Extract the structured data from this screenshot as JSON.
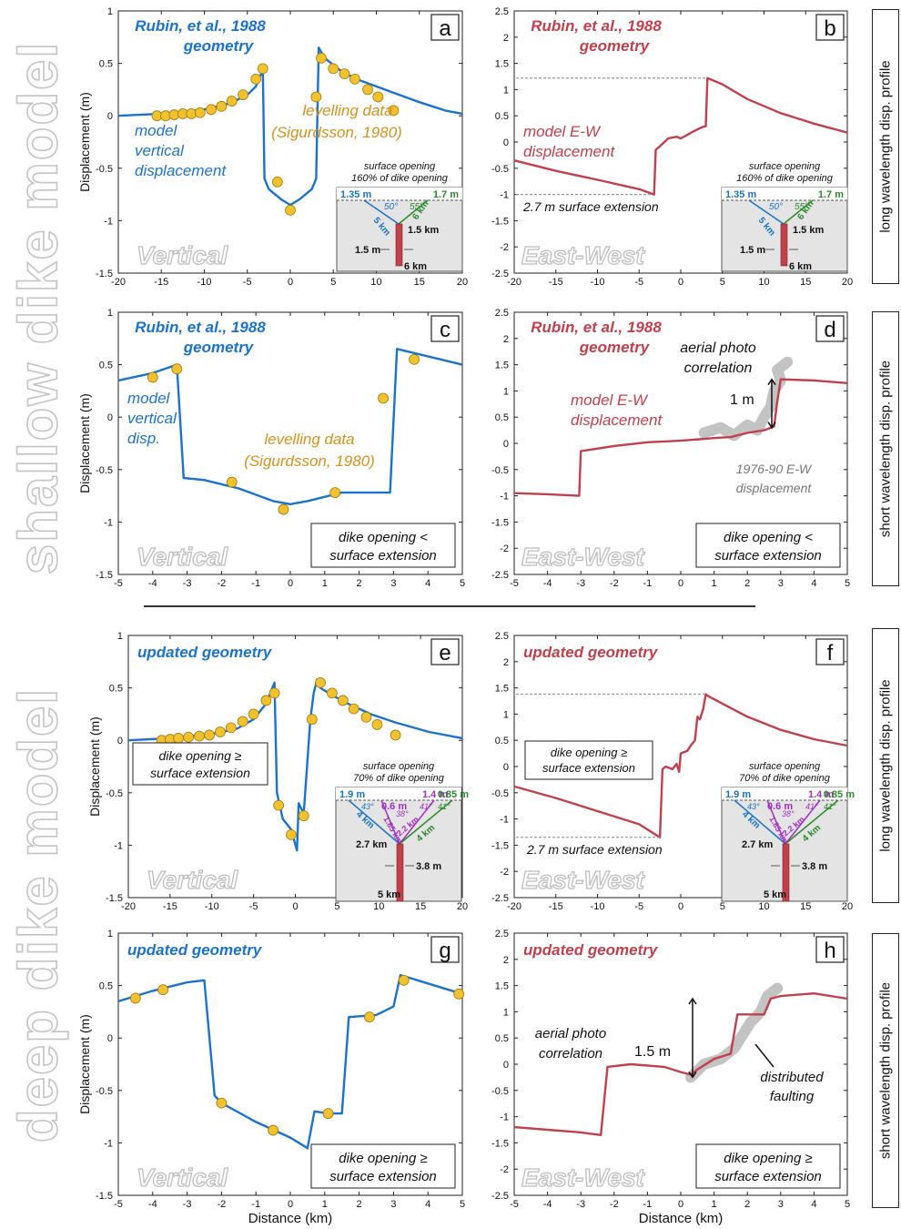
{
  "side_labels": {
    "top": "shallow dike model",
    "bottom": "deep dike model"
  },
  "row_labels": [
    "long wavelength disp. profile",
    "short wavelength disp. profile",
    "long wavelength disp. profile",
    "short wavelength disp. profile"
  ],
  "colors": {
    "vertical": "#1a73c8",
    "ew": "#c0404c",
    "levelling": "#f2c12e",
    "aerial": "#b8b8b8",
    "green": "#2a8a2a",
    "purple": "#a030c0",
    "dike": "#c0404c"
  },
  "chart_data": [
    {
      "id": "a",
      "type": "line",
      "title": "Rubin, et al., 1988 geometry",
      "ylabel": "Displacement (m)",
      "xlabel": "",
      "xlim": [
        -20,
        20
      ],
      "ylim": [
        -1.5,
        1
      ],
      "xticks": [
        "-20",
        "-15",
        "-10",
        "-5",
        "0",
        "5",
        "10",
        "15",
        "20"
      ],
      "yticks": [
        "-1.5",
        "-1",
        "-0.5",
        "0",
        "0.5",
        "1"
      ],
      "series": [
        {
          "name": "model vertical displacement",
          "color": "#1a73c8",
          "x": [
            -20,
            -15,
            -10,
            -7,
            -5,
            -4,
            -3.2,
            -3,
            -2.5,
            -1,
            0,
            1,
            2.5,
            3,
            3.3,
            4,
            6,
            8,
            10,
            12,
            15,
            18,
            20
          ],
          "y": [
            0,
            0.02,
            0.06,
            0.12,
            0.2,
            0.28,
            0.44,
            -0.6,
            -0.7,
            -0.8,
            -0.85,
            -0.8,
            -0.7,
            -0.6,
            0.65,
            0.55,
            0.42,
            0.34,
            0.28,
            0.22,
            0.13,
            0.05,
            0.02
          ]
        }
      ],
      "points": {
        "name": "levelling data (Sigurdsson, 1980)",
        "x": [
          -15.5,
          -14.5,
          -13.5,
          -12.5,
          -11.5,
          -10.5,
          -9.2,
          -8,
          -6.8,
          -5.5,
          -4,
          -3.2,
          -1.5,
          0,
          3,
          3.6,
          5,
          6.3,
          7.5,
          9,
          10.2,
          12
        ],
        "y": [
          0,
          0,
          0.01,
          0.02,
          0.02,
          0.03,
          0.06,
          0.09,
          0.14,
          0.2,
          0.35,
          0.45,
          -0.63,
          -0.9,
          0.18,
          0.55,
          0.45,
          0.4,
          0.35,
          0.25,
          0.18,
          0.05
        ]
      },
      "annotations": [
        "model vertical displacement",
        "levelling data (Sigurdsson, 1980)",
        "Vertical"
      ],
      "label_box": "a",
      "inset": {
        "caption": "surface opening 160% of dike opening",
        "left_fault": "1.35 m",
        "right_fault": "1.7 m",
        "left_angle": "50°",
        "right_angle": "55°",
        "left_len": "5 km",
        "right_len": "6 km",
        "top_depth": "1.5 km",
        "opening": "1.5 m",
        "bottom_depth": "6 km"
      }
    },
    {
      "id": "b",
      "type": "line",
      "title": "Rubin, et al., 1988 geometry",
      "ylabel": "",
      "xlabel": "",
      "xlim": [
        -20,
        20
      ],
      "ylim": [
        -2.5,
        2.5
      ],
      "xticks": [
        "-20",
        "-15",
        "-10",
        "-5",
        "0",
        "5",
        "10",
        "15",
        "20"
      ],
      "yticks": [
        "-2.5",
        "-2",
        "-1.5",
        "-1",
        "-0.5",
        "0",
        "0.5",
        "1",
        "1.5",
        "2",
        "2.5"
      ],
      "series": [
        {
          "name": "model E-W displacement",
          "color": "#c0404c",
          "x": [
            -20,
            -15,
            -10,
            -5,
            -3.2,
            -3,
            -2.5,
            -1.5,
            -0.5,
            0,
            0.6,
            1.5,
            2.5,
            3,
            3.2,
            5,
            8,
            12,
            16,
            20
          ],
          "y": [
            -0.35,
            -0.55,
            -0.72,
            -0.9,
            -1,
            -0.15,
            -0.08,
            0.07,
            0.1,
            0.07,
            0.12,
            0.2,
            0.28,
            0.3,
            1.22,
            1.1,
            0.82,
            0.55,
            0.35,
            0.18
          ]
        }
      ],
      "annotations": [
        "model E-W displacement",
        "2.7 m surface extension",
        "East-West"
      ],
      "label_box": "b",
      "inset": {
        "caption": "surface opening 160% of dike opening",
        "left_fault": "1.35 m",
        "right_fault": "1.7 m",
        "left_angle": "50°",
        "right_angle": "55°",
        "left_len": "5 km",
        "right_len": "6 km",
        "top_depth": "1.5 km",
        "opening": "1.5 m",
        "bottom_depth": "6 km"
      }
    },
    {
      "id": "c",
      "type": "line",
      "title": "Rubin, et al., 1988 geometry",
      "ylabel": "Displacement (m)",
      "xlabel": "",
      "xlim": [
        -5,
        5
      ],
      "ylim": [
        -1.5,
        1
      ],
      "xticks": [
        "-5",
        "-4",
        "-3",
        "-2",
        "-1",
        "0",
        "1",
        "2",
        "3",
        "4",
        "5"
      ],
      "yticks": [
        "-1.5",
        "-1",
        "-0.5",
        "0",
        "0.5",
        "1"
      ],
      "series": [
        {
          "name": "model vertical disp.",
          "color": "#1a73c8",
          "x": [
            -5,
            -4,
            -3.3,
            -3.1,
            -2.5,
            -1.5,
            -0.5,
            0,
            0.5,
            1.5,
            2.5,
            2.9,
            3.1,
            4,
            5
          ],
          "y": [
            0.35,
            0.42,
            0.5,
            -0.58,
            -0.6,
            -0.68,
            -0.8,
            -0.83,
            -0.8,
            -0.72,
            -0.72,
            -0.72,
            0.65,
            0.58,
            0.5
          ]
        }
      ],
      "points": {
        "name": "levelling data (Sigurdsson, 1980)",
        "x": [
          -4,
          -3.3,
          -1.7,
          -0.2,
          1.3,
          2.7,
          3.6
        ],
        "y": [
          0.38,
          0.46,
          -0.62,
          -0.88,
          -0.72,
          0.18,
          0.55
        ]
      },
      "annotations": [
        "model vertical disp.",
        "levelling data (Sigurdsson, 1980)",
        "Vertical",
        "dike opening < surface extension"
      ],
      "label_box": "c"
    },
    {
      "id": "d",
      "type": "line",
      "title": "Rubin, et al., 1988 geometry",
      "ylabel": "",
      "xlabel": "",
      "xlim": [
        -5,
        5
      ],
      "ylim": [
        -2.5,
        2.5
      ],
      "xticks": [
        "-5",
        "-4",
        "-3",
        "-2",
        "-1",
        "0",
        "1",
        "2",
        "3",
        "4",
        "5"
      ],
      "yticks": [
        "-2.5",
        "-2",
        "-1.5",
        "-1",
        "-0.5",
        "0",
        "0.5",
        "1",
        "1.5",
        "2",
        "2.5"
      ],
      "series": [
        {
          "name": "model E-W displacement",
          "color": "#c0404c",
          "x": [
            -5,
            -4,
            -3.05,
            -3,
            -2,
            -1,
            0,
            1,
            1.5,
            2,
            2.5,
            2.8,
            2.9,
            3,
            4,
            5
          ],
          "y": [
            -0.95,
            -0.97,
            -1,
            -0.15,
            -0.05,
            0.02,
            0.05,
            0.1,
            0.12,
            0.2,
            0.25,
            0.32,
            0.8,
            1.22,
            1.2,
            1.15
          ]
        },
        {
          "name": "1976-90 E-W displacement",
          "color": "#b8b8b8",
          "x": [
            0.7,
            1.2,
            1.6,
            2,
            2.3,
            2.5,
            2.7,
            2.8,
            3,
            2.9,
            3.2
          ],
          "y": [
            0.2,
            0.3,
            0.15,
            0.35,
            0.25,
            0.5,
            0.7,
            1.0,
            1.2,
            1.4,
            1.55
          ]
        }
      ],
      "annotations": [
        "aerial photo correlation",
        "1 m",
        "model E-W displacement",
        "1976-90 E-W displacement",
        "East-West",
        "dike opening < surface extension"
      ],
      "label_box": "d"
    },
    {
      "id": "e",
      "type": "line",
      "title": "updated geometry",
      "ylabel": "Displacement (m)",
      "xlabel": "",
      "xlim": [
        -20,
        20
      ],
      "ylim": [
        -1.5,
        1
      ],
      "xticks": [
        "-20",
        "-15",
        "-10",
        "-5",
        "0",
        "5",
        "10",
        "15",
        "20"
      ],
      "yticks": [
        "-1.5",
        "-1",
        "-0.5",
        "0",
        "0.5",
        "1"
      ],
      "series": [
        {
          "name": "model vertical displacement",
          "color": "#1a73c8",
          "x": [
            -20,
            -15,
            -10,
            -7,
            -5,
            -3.5,
            -2.5,
            -2.2,
            -1.5,
            -0.5,
            0.2,
            0.4,
            1,
            1.8,
            2.2,
            2.6,
            3,
            4,
            6,
            9,
            12,
            16,
            20
          ],
          "y": [
            0,
            0.02,
            0.06,
            0.11,
            0.2,
            0.35,
            0.55,
            -0.5,
            -0.75,
            -0.85,
            -1.05,
            -0.6,
            -0.7,
            0.2,
            0.45,
            0.58,
            0.5,
            0.45,
            0.36,
            0.25,
            0.17,
            0.08,
            0.02
          ]
        }
      ],
      "points": {
        "name": "levelling data",
        "x": [
          -16,
          -15,
          -14,
          -12.8,
          -11.5,
          -10.3,
          -9,
          -7.7,
          -6.3,
          -5,
          -3.5,
          -2.5,
          -2,
          -0.5,
          1,
          2,
          3,
          4.4,
          5.7,
          7,
          8.5,
          9.8,
          12
        ],
        "y": [
          0,
          0.01,
          0.02,
          0.03,
          0.04,
          0.05,
          0.08,
          0.12,
          0.18,
          0.25,
          0.38,
          0.45,
          -0.62,
          -0.9,
          -0.72,
          0.2,
          0.55,
          0.45,
          0.38,
          0.3,
          0.22,
          0.15,
          0.05
        ]
      },
      "annotations": [
        "dike opening ≥ surface extension",
        "Vertical"
      ],
      "label_box": "e",
      "inset": {
        "caption": "surface opening 70% of dike opening",
        "left_fault": "1.9 m",
        "mid_left": "0.6 m",
        "mid_right": "1.4 m",
        "right_fault": "0.85 m",
        "angle_1": "43°",
        "angle_2": "38°",
        "angle_3": "41°",
        "angle_4": "41°",
        "left_len": "4 km",
        "mid_len_1": "1.85 km",
        "mid_len_2": "2.2 km",
        "right_len": "4 km",
        "top_depth": "2.7 km",
        "opening": "3.8 m",
        "bottom_depth": "5 km"
      }
    },
    {
      "id": "f",
      "type": "line",
      "title": "updated geometry",
      "ylabel": "",
      "xlabel": "",
      "xlim": [
        -20,
        20
      ],
      "ylim": [
        -2.5,
        2.5
      ],
      "xticks": [
        "-20",
        "-15",
        "-10",
        "-5",
        "0",
        "5",
        "10",
        "15",
        "20"
      ],
      "yticks": [
        "-2.5",
        "-2",
        "-1.5",
        "-1",
        "-0.5",
        "0",
        "0.5",
        "1",
        "1.5",
        "2",
        "2.5"
      ],
      "series": [
        {
          "name": "model E-W displacement",
          "color": "#c0404c",
          "x": [
            -20,
            -15,
            -10,
            -5,
            -2.5,
            -2.2,
            -1.8,
            -1,
            -0.5,
            -0.2,
            0,
            0.8,
            1.2,
            1.7,
            2,
            2.3,
            2.7,
            3,
            3.2,
            5,
            8,
            12,
            16,
            20
          ],
          "y": [
            -0.38,
            -0.6,
            -0.85,
            -1.1,
            -1.35,
            -0.05,
            0,
            -0.05,
            0.05,
            -0.1,
            0.25,
            0.3,
            0.4,
            0.5,
            0.95,
            0.9,
            1.1,
            1.38,
            1.35,
            1.2,
            0.95,
            0.7,
            0.52,
            0.4
          ]
        }
      ],
      "annotations": [
        "dike opening ≥ surface extension",
        "2.7 m surface extension",
        "East-West"
      ],
      "label_box": "f",
      "inset": {
        "caption": "surface opening 70% of dike opening",
        "left_fault": "1.9 m",
        "mid_left": "0.6 m",
        "mid_right": "1.4 m",
        "right_fault": "0.85 m",
        "angle_1": "43°",
        "angle_2": "38°",
        "angle_3": "41°",
        "angle_4": "41°",
        "left_len": "4 km",
        "mid_len_1": "1.85 km",
        "mid_len_2": "2.2 km",
        "right_len": "4 km",
        "top_depth": "2.7 km",
        "opening": "3.8 m",
        "bottom_depth": "5 km"
      }
    },
    {
      "id": "g",
      "type": "line",
      "title": "updated geometry",
      "ylabel": "Displacement (m)",
      "xlabel": "Distance (km)",
      "xlim": [
        -5,
        5
      ],
      "ylim": [
        -1.5,
        1
      ],
      "xticks": [
        "-5",
        "-4",
        "-3",
        "-2",
        "-1",
        "0",
        "1",
        "2",
        "3",
        "4",
        "5"
      ],
      "yticks": [
        "-1.5",
        "-1",
        "-0.5",
        "0",
        "0.5",
        "1"
      ],
      "series": [
        {
          "name": "model vertical displacement",
          "color": "#1a73c8",
          "x": [
            -5,
            -4,
            -3,
            -2.5,
            -2.2,
            -2,
            -1,
            0,
            0.5,
            0.7,
            1.1,
            1.5,
            1.7,
            2.5,
            3,
            3.2,
            4,
            5
          ],
          "y": [
            0.35,
            0.45,
            0.53,
            0.55,
            -0.55,
            -0.62,
            -0.8,
            -0.95,
            -1.05,
            -0.7,
            -0.72,
            -0.72,
            0.2,
            0.22,
            0.3,
            0.6,
            0.52,
            0.42
          ]
        }
      ],
      "points": {
        "name": "levelling data",
        "x": [
          -4.5,
          -3.7,
          -2,
          -0.5,
          1.1,
          2.3,
          3.3,
          4.9
        ],
        "y": [
          0.38,
          0.46,
          -0.62,
          -0.88,
          -0.72,
          0.2,
          0.55,
          0.42
        ]
      },
      "annotations": [
        "Vertical",
        "dike opening ≥ surface extension"
      ],
      "label_box": "g"
    },
    {
      "id": "h",
      "type": "line",
      "title": "updated geometry",
      "ylabel": "",
      "xlabel": "Distance (km)",
      "xlim": [
        -5,
        5
      ],
      "ylim": [
        -2.5,
        2.5
      ],
      "xticks": [
        "-5",
        "-4",
        "-3",
        "-2",
        "-1",
        "0",
        "1",
        "2",
        "3",
        "4",
        "5"
      ],
      "yticks": [
        "-2.5",
        "-2",
        "-1.5",
        "-1",
        "-0.5",
        "0",
        "0.5",
        "1",
        "1.5",
        "2",
        "2.5"
      ],
      "series": [
        {
          "name": "model E-W displacement",
          "color": "#c0404c",
          "x": [
            -5,
            -4,
            -3,
            -2.4,
            -2.2,
            -1.5,
            -0.5,
            0,
            0.3,
            0.5,
            1,
            1.5,
            1.7,
            2.5,
            2.7,
            3,
            4,
            5
          ],
          "y": [
            -1.2,
            -1.25,
            -1.3,
            -1.35,
            -0.05,
            0,
            -0.05,
            -0.15,
            -0.2,
            -0.1,
            0.1,
            0.2,
            0.95,
            0.95,
            1.25,
            1.3,
            1.35,
            1.25
          ]
        },
        {
          "name": "aerial photo correlation",
          "color": "#b8b8b8",
          "x": [
            0.3,
            0.7,
            1.2,
            1.6,
            1.9,
            2.1,
            2.4,
            2.6,
            2.9
          ],
          "y": [
            -0.25,
            0,
            0.1,
            0.3,
            0.6,
            0.8,
            1.0,
            1.3,
            1.45
          ]
        }
      ],
      "annotations": [
        "aerial photo correlation",
        "1.5 m",
        "distributed faulting",
        "East-West",
        "dike opening ≥ surface extension"
      ],
      "label_box": "h"
    }
  ]
}
